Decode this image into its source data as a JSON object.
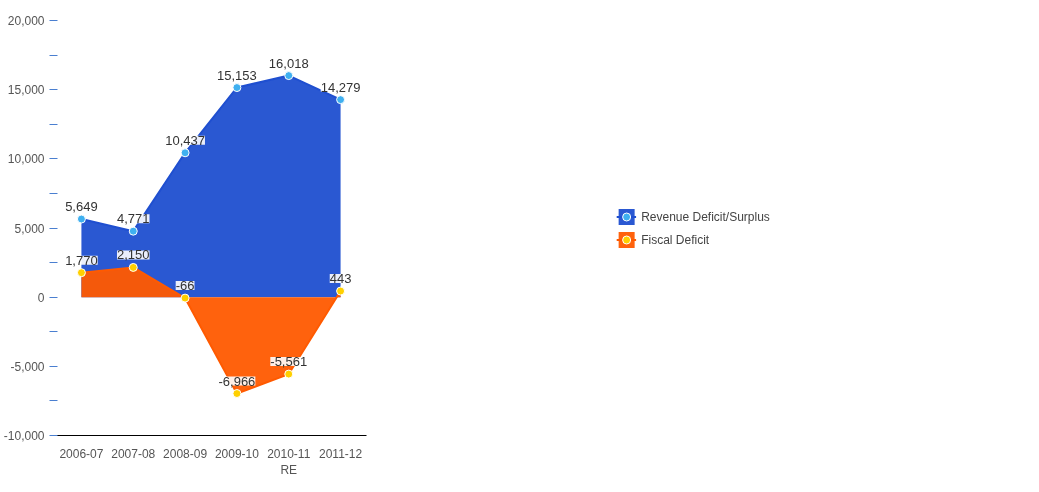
{
  "chart_data": {
    "type": "area",
    "categories": [
      "2006-07",
      "2007-08",
      "2008-09",
      "2009-10",
      "2010-11\nRE",
      "2011-12"
    ],
    "series": [
      {
        "name": "Revenue Deficit/Surplus",
        "color": "#1f4fd0",
        "values": [
          5649,
          4771,
          10437,
          15153,
          16018,
          14279
        ],
        "value_labels": [
          "5,649",
          "4,771",
          "10,437",
          "15,153",
          "16,018",
          "14,279"
        ]
      },
      {
        "name": "Fiscal Deficit",
        "color": "#ff5a00",
        "values": [
          1770,
          2150,
          -66,
          -6966,
          -5561,
          443
        ],
        "value_labels": [
          "1,770",
          "2,150",
          "-66",
          "-6,966",
          "-5,561",
          "443"
        ]
      }
    ],
    "ylim": [
      -10000,
      20000
    ],
    "yticks": [
      {
        "value": -10000,
        "label": "-10,000"
      },
      {
        "value": -7500,
        "label": null
      },
      {
        "value": -5000,
        "label": "-5,000"
      },
      {
        "value": -2500,
        "label": null
      },
      {
        "value": 0,
        "label": "0"
      },
      {
        "value": 2500,
        "label": null
      },
      {
        "value": 5000,
        "label": "5,000"
      },
      {
        "value": 7500,
        "label": null
      },
      {
        "value": 10000,
        "label": "10,000"
      },
      {
        "value": 12500,
        "label": null
      },
      {
        "value": 15000,
        "label": "15,000"
      },
      {
        "value": 17500,
        "label": null
      },
      {
        "value": 20000,
        "label": "20,000"
      }
    ],
    "marker": "circle",
    "legend": "right",
    "grid": false
  }
}
